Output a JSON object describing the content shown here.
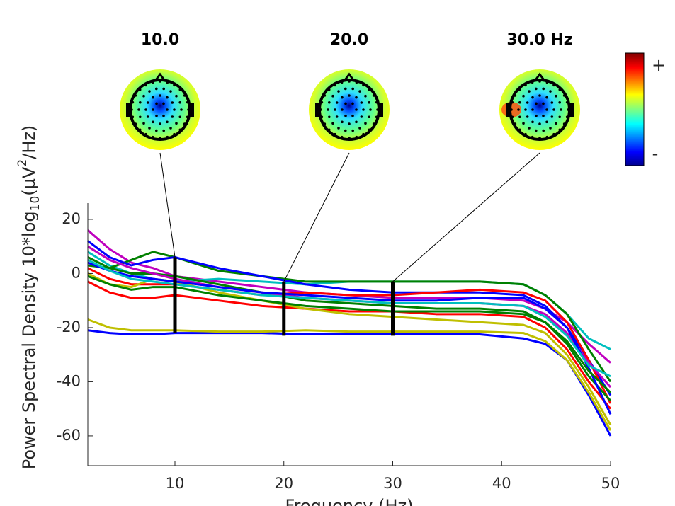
{
  "chart_data": {
    "type": "line",
    "x_label": "Frequency (Hz)",
    "y_label_parts": [
      "Power Spectral Density 10*log",
      "10",
      "(μV",
      "2",
      "/Hz)"
    ],
    "xlim": [
      2,
      50
    ],
    "ylim": [
      -71,
      26
    ],
    "xticks": [
      10,
      20,
      30,
      40,
      50
    ],
    "yticks": [
      20,
      0,
      -20,
      -40,
      -60
    ],
    "colorbar_labels": [
      "+",
      "-"
    ],
    "markers": [
      {
        "x": 10,
        "label": "10.0",
        "ymin": -22,
        "ymax": 6
      },
      {
        "x": 20,
        "label": "20.0",
        "ymin": -23,
        "ymax": -3
      },
      {
        "x": 30,
        "label": "30.0 Hz",
        "ymin": -23,
        "ymax": -3
      }
    ],
    "x": [
      2,
      4,
      6,
      8,
      10,
      14,
      18,
      22,
      26,
      30,
      34,
      38,
      42,
      44,
      46,
      48,
      50
    ],
    "series": [
      {
        "color": "#0000ff",
        "values": [
          -21,
          -22,
          -22.5,
          -22.5,
          -22,
          -22,
          -22,
          -22.5,
          -22.5,
          -22.5,
          -22.5,
          -22.5,
          -24,
          -26,
          -32,
          -45,
          -60
        ]
      },
      {
        "color": "#bfbf00",
        "values": [
          -17,
          -20,
          -21,
          -21,
          -21,
          -21.5,
          -21.5,
          -21,
          -21.5,
          -21.5,
          -21.5,
          -21.5,
          -22,
          -25,
          -32,
          -44,
          -58
        ]
      },
      {
        "color": "#bf00bf",
        "values": [
          16,
          9,
          4,
          2,
          -1,
          -3,
          -5,
          -7,
          -8,
          -9,
          -9,
          -9,
          -10,
          -13,
          -18,
          -26,
          -33
        ]
      },
      {
        "color": "#00bfbf",
        "values": [
          8,
          3,
          0,
          -2,
          -3,
          -2,
          -3,
          -4,
          -3,
          -3,
          -3,
          -3,
          -4,
          -8,
          -15,
          -24,
          -28
        ]
      },
      {
        "color": "#008000",
        "values": [
          3,
          2,
          5,
          8,
          6,
          1,
          -1,
          -3,
          -3,
          -3,
          -3,
          -3,
          -4,
          -8,
          -15,
          -28,
          -40
        ]
      },
      {
        "color": "#0000ff",
        "values": [
          12,
          6,
          3,
          5,
          6,
          2,
          -1,
          -4,
          -6,
          -7,
          -7,
          -7,
          -8,
          -12,
          -20,
          -32,
          -45
        ]
      },
      {
        "color": "#ff0000",
        "values": [
          -3,
          -7,
          -9,
          -9,
          -8,
          -10,
          -12,
          -13,
          -14,
          -14,
          -15,
          -15,
          -16,
          -20,
          -28,
          -40,
          -50
        ]
      },
      {
        "color": "#ff0000",
        "values": [
          2,
          -2,
          -4,
          -4,
          -4,
          -6,
          -8,
          -7,
          -8,
          -8,
          -7,
          -6,
          -7,
          -10,
          -18,
          -32,
          -48
        ]
      },
      {
        "color": "#008000",
        "values": [
          6,
          2,
          0,
          0,
          -1,
          -4,
          -7,
          -10,
          -11,
          -12,
          -13,
          -13,
          -14,
          -18,
          -26,
          -38,
          -47
        ]
      },
      {
        "color": "#bfbf00",
        "values": [
          0,
          -4,
          -5,
          -2,
          -3,
          -7,
          -10,
          -13,
          -15,
          -16,
          -17,
          -18,
          -19,
          -22,
          -30,
          -42,
          -56
        ]
      },
      {
        "color": "#bf00bf",
        "values": [
          10,
          5,
          2,
          0,
          -2,
          -5,
          -7,
          -9,
          -10,
          -11,
          -11,
          -11,
          -12,
          -15,
          -22,
          -33,
          -42
        ]
      },
      {
        "color": "#0000ff",
        "values": [
          4,
          1,
          -1,
          -2,
          -3,
          -5,
          -7,
          -8,
          -9,
          -10,
          -10,
          -9,
          -9,
          -13,
          -20,
          -35,
          -52
        ]
      },
      {
        "color": "#008000",
        "values": [
          -1,
          -4,
          -6,
          -5,
          -5,
          -8,
          -10,
          -12,
          -13,
          -14,
          -14,
          -14,
          -15,
          -18,
          -25,
          -36,
          -44
        ]
      },
      {
        "color": "#00bfbf",
        "values": [
          5,
          1,
          -2,
          -3,
          -4,
          -6,
          -8,
          -9,
          -10,
          -11,
          -11,
          -11,
          -12,
          -16,
          -23,
          -34,
          -38
        ]
      }
    ]
  }
}
